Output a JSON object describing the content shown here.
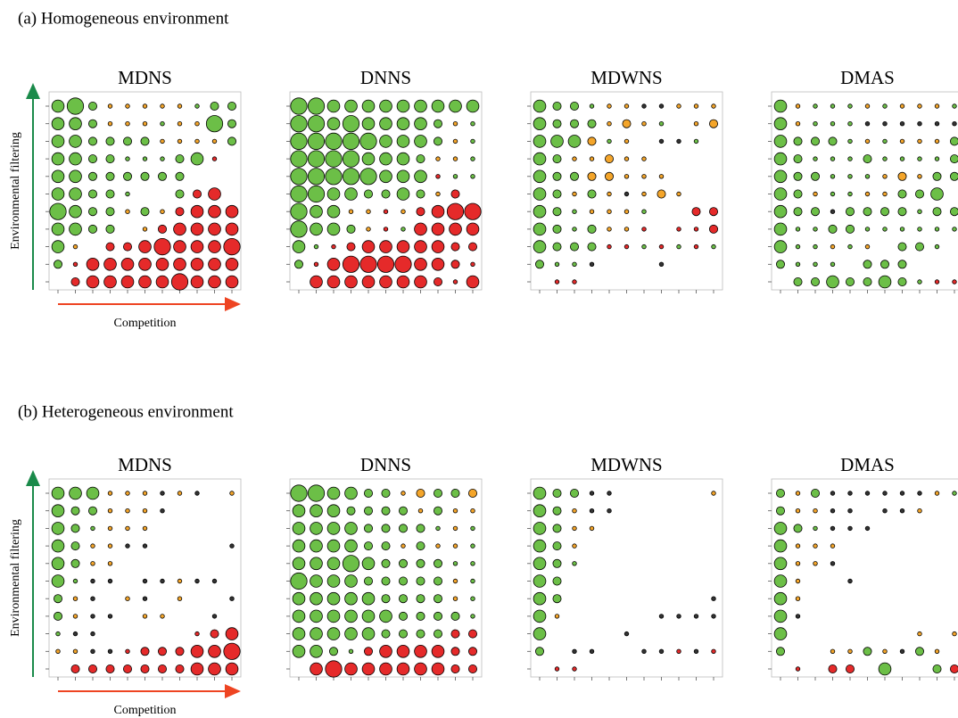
{
  "sections": [
    {
      "title": "(a) Homogeneous environment"
    },
    {
      "title": "(b) Heterogeneous environment"
    }
  ],
  "bubble_colors": {
    "g": "#6cbf47",
    "o": "#f4a52a",
    "r": "#e52a2a",
    "k": "#333333"
  },
  "chart_data": [
    {
      "type": "bubble_grid",
      "title": "MDNS",
      "y_label": "Environmental filtering",
      "x_label": "Competition",
      "sizes": [
        [
          3,
          4,
          2,
          1,
          1,
          1,
          1,
          1,
          1,
          2,
          2
        ],
        [
          3,
          3,
          2,
          1,
          1,
          1,
          1,
          1,
          1,
          4,
          2
        ],
        [
          3,
          3,
          2,
          2,
          2,
          2,
          1,
          1,
          1,
          1,
          2
        ],
        [
          3,
          3,
          2,
          2,
          1,
          1,
          1,
          2,
          3,
          1,
          0
        ],
        [
          3,
          3,
          2,
          2,
          2,
          2,
          2,
          2,
          0,
          0,
          0
        ],
        [
          3,
          3,
          2,
          2,
          1,
          0,
          0,
          2,
          2,
          3,
          0
        ],
        [
          4,
          3,
          2,
          2,
          1,
          2,
          1,
          2,
          3,
          3,
          3
        ],
        [
          3,
          3,
          2,
          2,
          0,
          1,
          2,
          3,
          3,
          3,
          3
        ],
        [
          3,
          1,
          0,
          2,
          2,
          3,
          4,
          3,
          3,
          3,
          4
        ],
        [
          2,
          1,
          3,
          3,
          3,
          3,
          3,
          3,
          3,
          3,
          3
        ],
        [
          0,
          2,
          3,
          3,
          3,
          3,
          3,
          4,
          3,
          3,
          3
        ]
      ],
      "colors": [
        "gggoooooggg",
        "gggooogoogg",
        "ggggggoooog",
        "gggggggggr-",
        "gggggggg---",
        "ggggg--grr-",
        "ggggogorrrr",
        "gggg-orrrrr",
        "go-rrrrrrrr",
        "grrrrrrrrrr",
        "-rrrrrrrrrr"
      ]
    },
    {
      "type": "bubble_grid",
      "title": "DNNS",
      "sizes": [
        [
          4,
          4,
          3,
          3,
          3,
          3,
          3,
          3,
          3,
          3,
          3
        ],
        [
          4,
          4,
          3,
          4,
          3,
          3,
          3,
          3,
          2,
          1,
          1
        ],
        [
          4,
          4,
          4,
          4,
          4,
          3,
          3,
          3,
          2,
          1,
          1
        ],
        [
          4,
          4,
          4,
          4,
          3,
          3,
          3,
          2,
          1,
          1,
          1
        ],
        [
          4,
          4,
          4,
          4,
          4,
          3,
          3,
          3,
          1,
          1,
          1
        ],
        [
          4,
          4,
          3,
          3,
          2,
          2,
          3,
          2,
          1,
          2,
          0
        ],
        [
          4,
          3,
          3,
          1,
          1,
          1,
          1,
          2,
          3,
          4,
          4
        ],
        [
          4,
          3,
          3,
          2,
          1,
          1,
          1,
          3,
          3,
          3,
          3
        ],
        [
          3,
          1,
          1,
          2,
          3,
          3,
          3,
          3,
          3,
          2,
          2
        ],
        [
          2,
          1,
          3,
          4,
          4,
          4,
          4,
          3,
          3,
          2,
          1
        ],
        [
          0,
          3,
          3,
          3,
          3,
          3,
          3,
          3,
          2,
          1,
          3
        ]
      ],
      "colors": [
        "ggggggggggg",
        "gggggggggog",
        "gggggggggog",
        "ggggggggoog",
        "ggggggggrgg",
        "ggggggggor-",
        "gggoororrrr",
        "ggggorgrrrr",
        "ggrrrrrrrrr",
        "grrrrrrrrrr",
        "-rrrrrrrrrr"
      ]
    },
    {
      "type": "bubble_grid",
      "title": "MDWNS",
      "sizes": [
        [
          3,
          2,
          2,
          1,
          1,
          1,
          1,
          1,
          1,
          1,
          1
        ],
        [
          3,
          2,
          2,
          2,
          1,
          2,
          1,
          1,
          0,
          1,
          2
        ],
        [
          3,
          3,
          3,
          2,
          1,
          1,
          0,
          1,
          1,
          1,
          0
        ],
        [
          3,
          2,
          1,
          1,
          2,
          1,
          1,
          0,
          0,
          0,
          0
        ],
        [
          3,
          2,
          2,
          2,
          2,
          1,
          1,
          1,
          0,
          0,
          0
        ],
        [
          3,
          2,
          1,
          2,
          1,
          1,
          1,
          2,
          1,
          0,
          0
        ],
        [
          3,
          2,
          1,
          1,
          1,
          1,
          1,
          0,
          0,
          2,
          2
        ],
        [
          3,
          2,
          1,
          2,
          1,
          1,
          1,
          0,
          1,
          1,
          2
        ],
        [
          3,
          2,
          2,
          2,
          1,
          1,
          1,
          1,
          1,
          1,
          1
        ],
        [
          2,
          1,
          1,
          1,
          0,
          0,
          0,
          1,
          0,
          0,
          0
        ],
        [
          0,
          1,
          1,
          0,
          0,
          0,
          0,
          0,
          0,
          0,
          0
        ]
      ],
      "colors": [
        "ggggookkooo",
        "ggggooog-oo",
        "gggogo-kkg-",
        "ggooooo----",
        "gggooooo---",
        "ggogokooo--",
        "gggooog--rr",
        "ggggoor-rrr",
        "ggggrrgrgrg",
        "gggk---k---",
        "-rr--------"
      ]
    },
    {
      "type": "bubble_grid",
      "title": "DMAS",
      "sizes": [
        [
          3,
          1,
          1,
          1,
          1,
          1,
          1,
          1,
          1,
          1,
          1
        ],
        [
          3,
          1,
          1,
          1,
          1,
          1,
          1,
          1,
          1,
          1,
          1
        ],
        [
          3,
          2,
          2,
          2,
          1,
          1,
          1,
          1,
          1,
          1,
          2
        ],
        [
          3,
          2,
          1,
          1,
          1,
          2,
          1,
          1,
          1,
          1,
          2
        ],
        [
          3,
          2,
          2,
          1,
          1,
          1,
          1,
          2,
          1,
          2,
          2
        ],
        [
          3,
          2,
          1,
          1,
          1,
          1,
          1,
          2,
          2,
          3,
          0
        ],
        [
          3,
          2,
          2,
          1,
          2,
          2,
          2,
          2,
          1,
          2,
          2
        ],
        [
          3,
          1,
          1,
          2,
          2,
          1,
          1,
          1,
          1,
          1,
          1
        ],
        [
          3,
          1,
          1,
          1,
          1,
          1,
          0,
          2,
          2,
          1,
          0
        ],
        [
          2,
          1,
          1,
          1,
          0,
          2,
          2,
          2,
          0,
          0,
          0
        ],
        [
          0,
          2,
          2,
          3,
          2,
          2,
          3,
          2,
          1,
          1,
          1
        ]
      ],
      "colors": [
        "gogggogooog",
        "gogggkkkkkk",
        "gggggogooog",
        "ggggggggggg",
        "ggggggooogg",
        "ggoggooggg-",
        "gggkggggggg",
        "ggggggggggg",
        "gggogo-ggg-",
        "gggg-ggg---",
        "-ggggggggrr"
      ]
    },
    {
      "type": "bubble_grid",
      "title": "MDNS",
      "y_label": "Environmental filtering",
      "x_label": "Competition",
      "sizes": [
        [
          3,
          3,
          3,
          1,
          1,
          1,
          1,
          1,
          1,
          0,
          1
        ],
        [
          3,
          2,
          2,
          1,
          1,
          1,
          1,
          0,
          0,
          0,
          0
        ],
        [
          3,
          2,
          1,
          1,
          1,
          1,
          0,
          0,
          0,
          0,
          0
        ],
        [
          3,
          2,
          1,
          1,
          1,
          1,
          0,
          0,
          0,
          0,
          1
        ],
        [
          3,
          2,
          1,
          1,
          0,
          0,
          0,
          0,
          0,
          0,
          0
        ],
        [
          3,
          1,
          1,
          1,
          0,
          1,
          1,
          1,
          1,
          1,
          0
        ],
        [
          2,
          1,
          1,
          0,
          1,
          1,
          0,
          1,
          0,
          0,
          1
        ],
        [
          2,
          1,
          1,
          1,
          0,
          1,
          1,
          0,
          0,
          1,
          0
        ],
        [
          1,
          1,
          1,
          0,
          0,
          0,
          0,
          0,
          1,
          2,
          3
        ],
        [
          1,
          1,
          1,
          1,
          1,
          2,
          2,
          2,
          3,
          3,
          4
        ],
        [
          0,
          2,
          2,
          2,
          2,
          2,
          2,
          2,
          3,
          3,
          3
        ]
      ],
      "colors": [
        "gggoookok-o",
        "gggoook----",
        "gggooo-----",
        "ggookk----k",
        "ggoo-------",
        "ggkk-kkokk-",
        "gok-ok-o--k",
        "gokk-oo--k-",
        "gkk-----rrr",
        "ookkrrrrrrr",
        "-rrrrrrrrrr"
      ]
    },
    {
      "type": "bubble_grid",
      "title": "DNNS",
      "sizes": [
        [
          4,
          4,
          3,
          3,
          2,
          2,
          1,
          2,
          2,
          2,
          2
        ],
        [
          3,
          3,
          3,
          2,
          2,
          2,
          2,
          1,
          2,
          1,
          1
        ],
        [
          3,
          3,
          3,
          3,
          2,
          2,
          2,
          2,
          1,
          1,
          1
        ],
        [
          3,
          3,
          3,
          3,
          2,
          2,
          1,
          2,
          1,
          1,
          1
        ],
        [
          3,
          3,
          3,
          4,
          3,
          2,
          2,
          2,
          2,
          1,
          1
        ],
        [
          4,
          3,
          3,
          3,
          2,
          2,
          2,
          2,
          2,
          1,
          1
        ],
        [
          3,
          3,
          3,
          3,
          3,
          2,
          2,
          2,
          2,
          1,
          1
        ],
        [
          3,
          3,
          3,
          3,
          3,
          3,
          2,
          2,
          2,
          2,
          1
        ],
        [
          3,
          3,
          3,
          3,
          3,
          2,
          2,
          2,
          2,
          2,
          2
        ],
        [
          3,
          3,
          2,
          1,
          2,
          3,
          3,
          3,
          3,
          2,
          2
        ],
        [
          0,
          3,
          4,
          3,
          3,
          3,
          3,
          3,
          3,
          2,
          2
        ]
      ],
      "colors": [
        "ggggggooggo",
        "gggggggogoo",
        "gggggggggog",
        "ggggggogoog",
        "ggggggggggg",
        "gggggggggog",
        "gggggggggog",
        "ggggggggggg",
        "gggggggggrr",
        "ggggrrrrrrr",
        "-rrrrrrrrrr"
      ]
    },
    {
      "type": "bubble_grid",
      "title": "MDWNS",
      "sizes": [
        [
          3,
          2,
          2,
          1,
          1,
          0,
          0,
          0,
          0,
          0,
          1
        ],
        [
          3,
          2,
          1,
          1,
          1,
          0,
          0,
          0,
          0,
          0,
          0
        ],
        [
          3,
          2,
          1,
          1,
          0,
          0,
          0,
          0,
          0,
          0,
          0
        ],
        [
          3,
          2,
          1,
          0,
          0,
          0,
          0,
          0,
          0,
          0,
          0
        ],
        [
          3,
          2,
          1,
          0,
          0,
          0,
          0,
          0,
          0,
          0,
          0
        ],
        [
          3,
          2,
          0,
          0,
          0,
          0,
          0,
          0,
          0,
          0,
          0
        ],
        [
          3,
          2,
          0,
          0,
          0,
          0,
          0,
          0,
          0,
          0,
          1
        ],
        [
          3,
          1,
          0,
          0,
          0,
          0,
          0,
          1,
          1,
          1,
          1
        ],
        [
          3,
          0,
          0,
          0,
          0,
          1,
          0,
          0,
          0,
          0,
          0
        ],
        [
          2,
          0,
          1,
          1,
          0,
          0,
          1,
          1,
          1,
          1,
          1
        ],
        [
          0,
          1,
          1,
          0,
          0,
          0,
          0,
          0,
          0,
          0,
          0
        ]
      ],
      "colors": [
        "gggkk-----o",
        "ggokk------",
        "ggoo-------",
        "ggo--------",
        "ggg--------",
        "gg---------",
        "gg--------k",
        "go-----kkkk",
        "g----k-----",
        "g-kk--kkrkr",
        "-rr--------"
      ]
    },
    {
      "type": "bubble_grid",
      "title": "DMAS",
      "sizes": [
        [
          2,
          1,
          2,
          1,
          1,
          1,
          1,
          1,
          1,
          1,
          1
        ],
        [
          2,
          1,
          1,
          1,
          1,
          0,
          1,
          1,
          1,
          0,
          0
        ],
        [
          3,
          2,
          1,
          1,
          1,
          1,
          0,
          0,
          0,
          0,
          0
        ],
        [
          3,
          1,
          1,
          1,
          0,
          0,
          0,
          0,
          0,
          0,
          0
        ],
        [
          3,
          1,
          1,
          1,
          0,
          0,
          0,
          0,
          0,
          0,
          0
        ],
        [
          3,
          1,
          0,
          0,
          1,
          0,
          0,
          0,
          0,
          0,
          0
        ],
        [
          3,
          1,
          0,
          0,
          0,
          0,
          0,
          0,
          0,
          0,
          0
        ],
        [
          3,
          1,
          0,
          0,
          0,
          0,
          0,
          0,
          0,
          0,
          0
        ],
        [
          3,
          0,
          0,
          0,
          0,
          0,
          0,
          0,
          1,
          0,
          1
        ],
        [
          2,
          0,
          0,
          1,
          1,
          2,
          1,
          1,
          2,
          1,
          0
        ],
        [
          0,
          1,
          0,
          2,
          2,
          0,
          3,
          0,
          0,
          2,
          2
        ]
      ],
      "colors": [
        "gogkkkkkkog",
        "gookk-kko--",
        "gggkkk-----",
        "gooo-------",
        "gook-------",
        "go--k------",
        "go---------",
        "gk---------",
        "g-------o-o",
        "g--oogokgo-",
        "-r-rr-g--gr"
      ]
    }
  ]
}
